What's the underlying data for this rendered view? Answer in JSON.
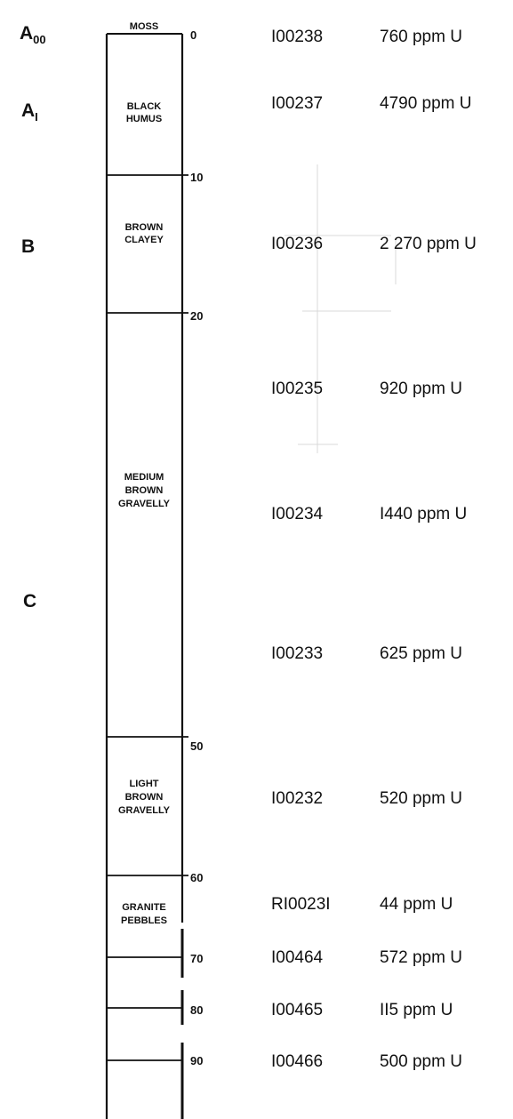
{
  "horizons": [
    {
      "label": "A",
      "sub": "00"
    },
    {
      "label": "A",
      "sub": "I"
    },
    {
      "label": "B",
      "sub": ""
    },
    {
      "label": "C",
      "sub": ""
    }
  ],
  "depth_labels": [
    "0",
    "10",
    "20",
    "50",
    "60",
    "70",
    "80",
    "90"
  ],
  "layers": [
    {
      "lines": [
        "MOSS"
      ]
    },
    {
      "lines": [
        "BLACK",
        "HUMUS"
      ]
    },
    {
      "lines": [
        "BROWN",
        "CLAYEY"
      ]
    },
    {
      "lines": [
        "MEDIUM",
        "BROWN",
        "GRAVELLY"
      ]
    },
    {
      "lines": [
        "LIGHT",
        "BROWN",
        "GRAVELLY"
      ]
    },
    {
      "lines": [
        "GRANITE",
        "PEBBLES"
      ]
    }
  ],
  "samples": [
    {
      "id": "I00238",
      "value": "760 ppm U"
    },
    {
      "id": "I00237",
      "value": "4790 ppm U"
    },
    {
      "id": "I00236",
      "value": "2 270 ppm U"
    },
    {
      "id": "I00235",
      "value": "920 ppm U"
    },
    {
      "id": "I00234",
      "value": "I440 ppm U"
    },
    {
      "id": "I00233",
      "value": "625 ppm U"
    },
    {
      "id": "I00232",
      "value": "520 ppm U"
    },
    {
      "id": "RI0023I",
      "value": "44 ppm U"
    },
    {
      "id": "I00464",
      "value": "572 ppm U"
    },
    {
      "id": "I00465",
      "value": "II5 ppm U"
    },
    {
      "id": "I00466",
      "value": "500 ppm U"
    }
  ],
  "colors": {
    "ink": "#111111",
    "ghost": "#cfcfcf",
    "background": "#ffffff"
  }
}
